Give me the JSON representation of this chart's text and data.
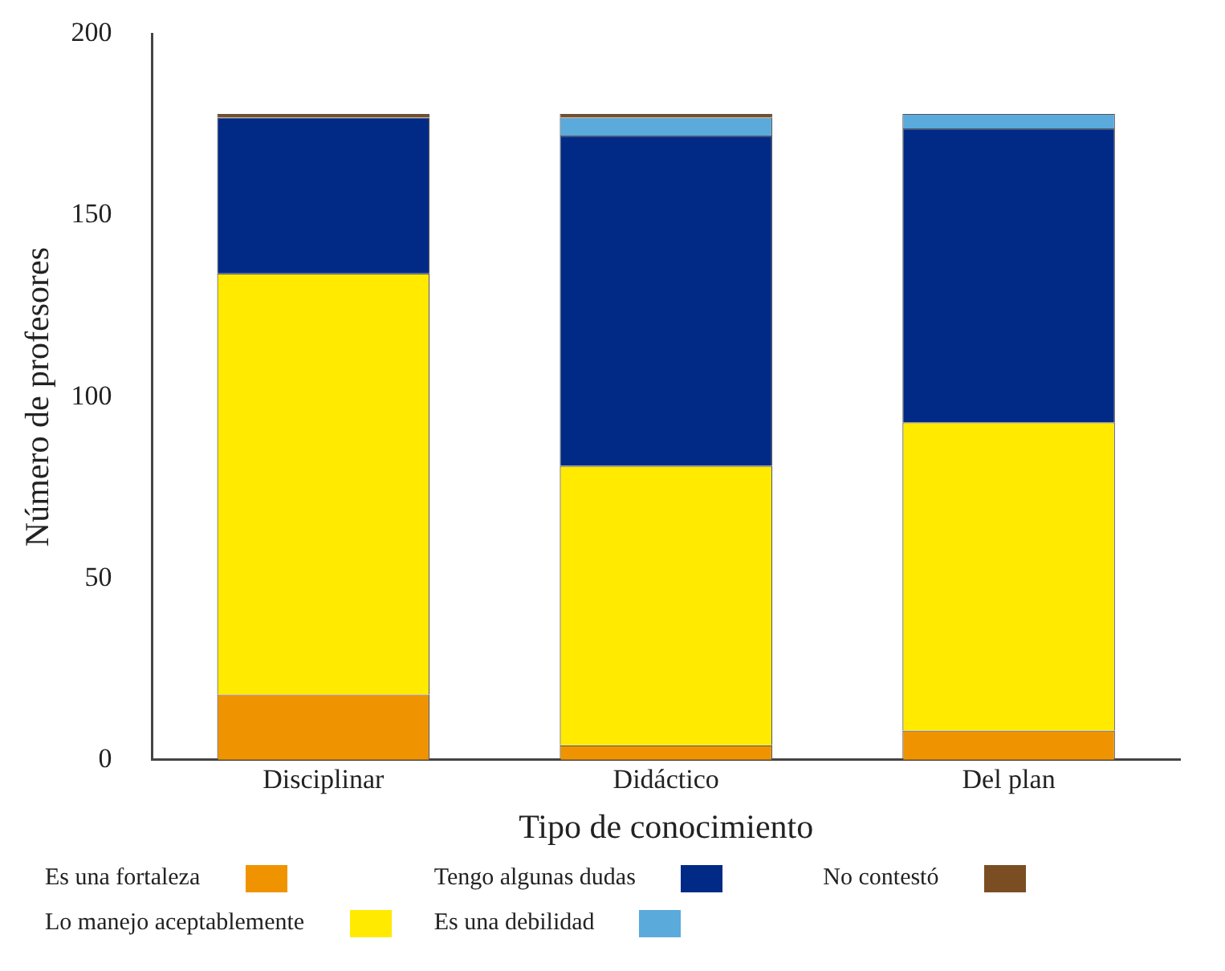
{
  "chart_data": {
    "type": "bar",
    "stacked": true,
    "xlabel": "Tipo de conocimiento",
    "ylabel": "Número de profesores",
    "categories": [
      "Disciplinar",
      "Didáctico",
      "Del plan"
    ],
    "ylim": [
      0,
      200
    ],
    "yticks": [
      0,
      50,
      100,
      150,
      200
    ],
    "grid": false,
    "legend": "bottom",
    "series": [
      {
        "name": "Es una fortaleza",
        "color": "#ef9400",
        "values": [
          18,
          4,
          8
        ]
      },
      {
        "name": "Lo manejo aceptablemente",
        "color": "#ffea00",
        "values": [
          116,
          77,
          85
        ]
      },
      {
        "name": "Tengo algunas dudas",
        "color": "#002a86",
        "values": [
          43,
          91,
          81
        ]
      },
      {
        "name": "Es una debilidad",
        "color": "#5aaadc",
        "values": [
          0,
          5,
          4
        ]
      },
      {
        "name": "No contestó",
        "color": "#7a4e22",
        "values": [
          1,
          1,
          0
        ]
      }
    ]
  }
}
